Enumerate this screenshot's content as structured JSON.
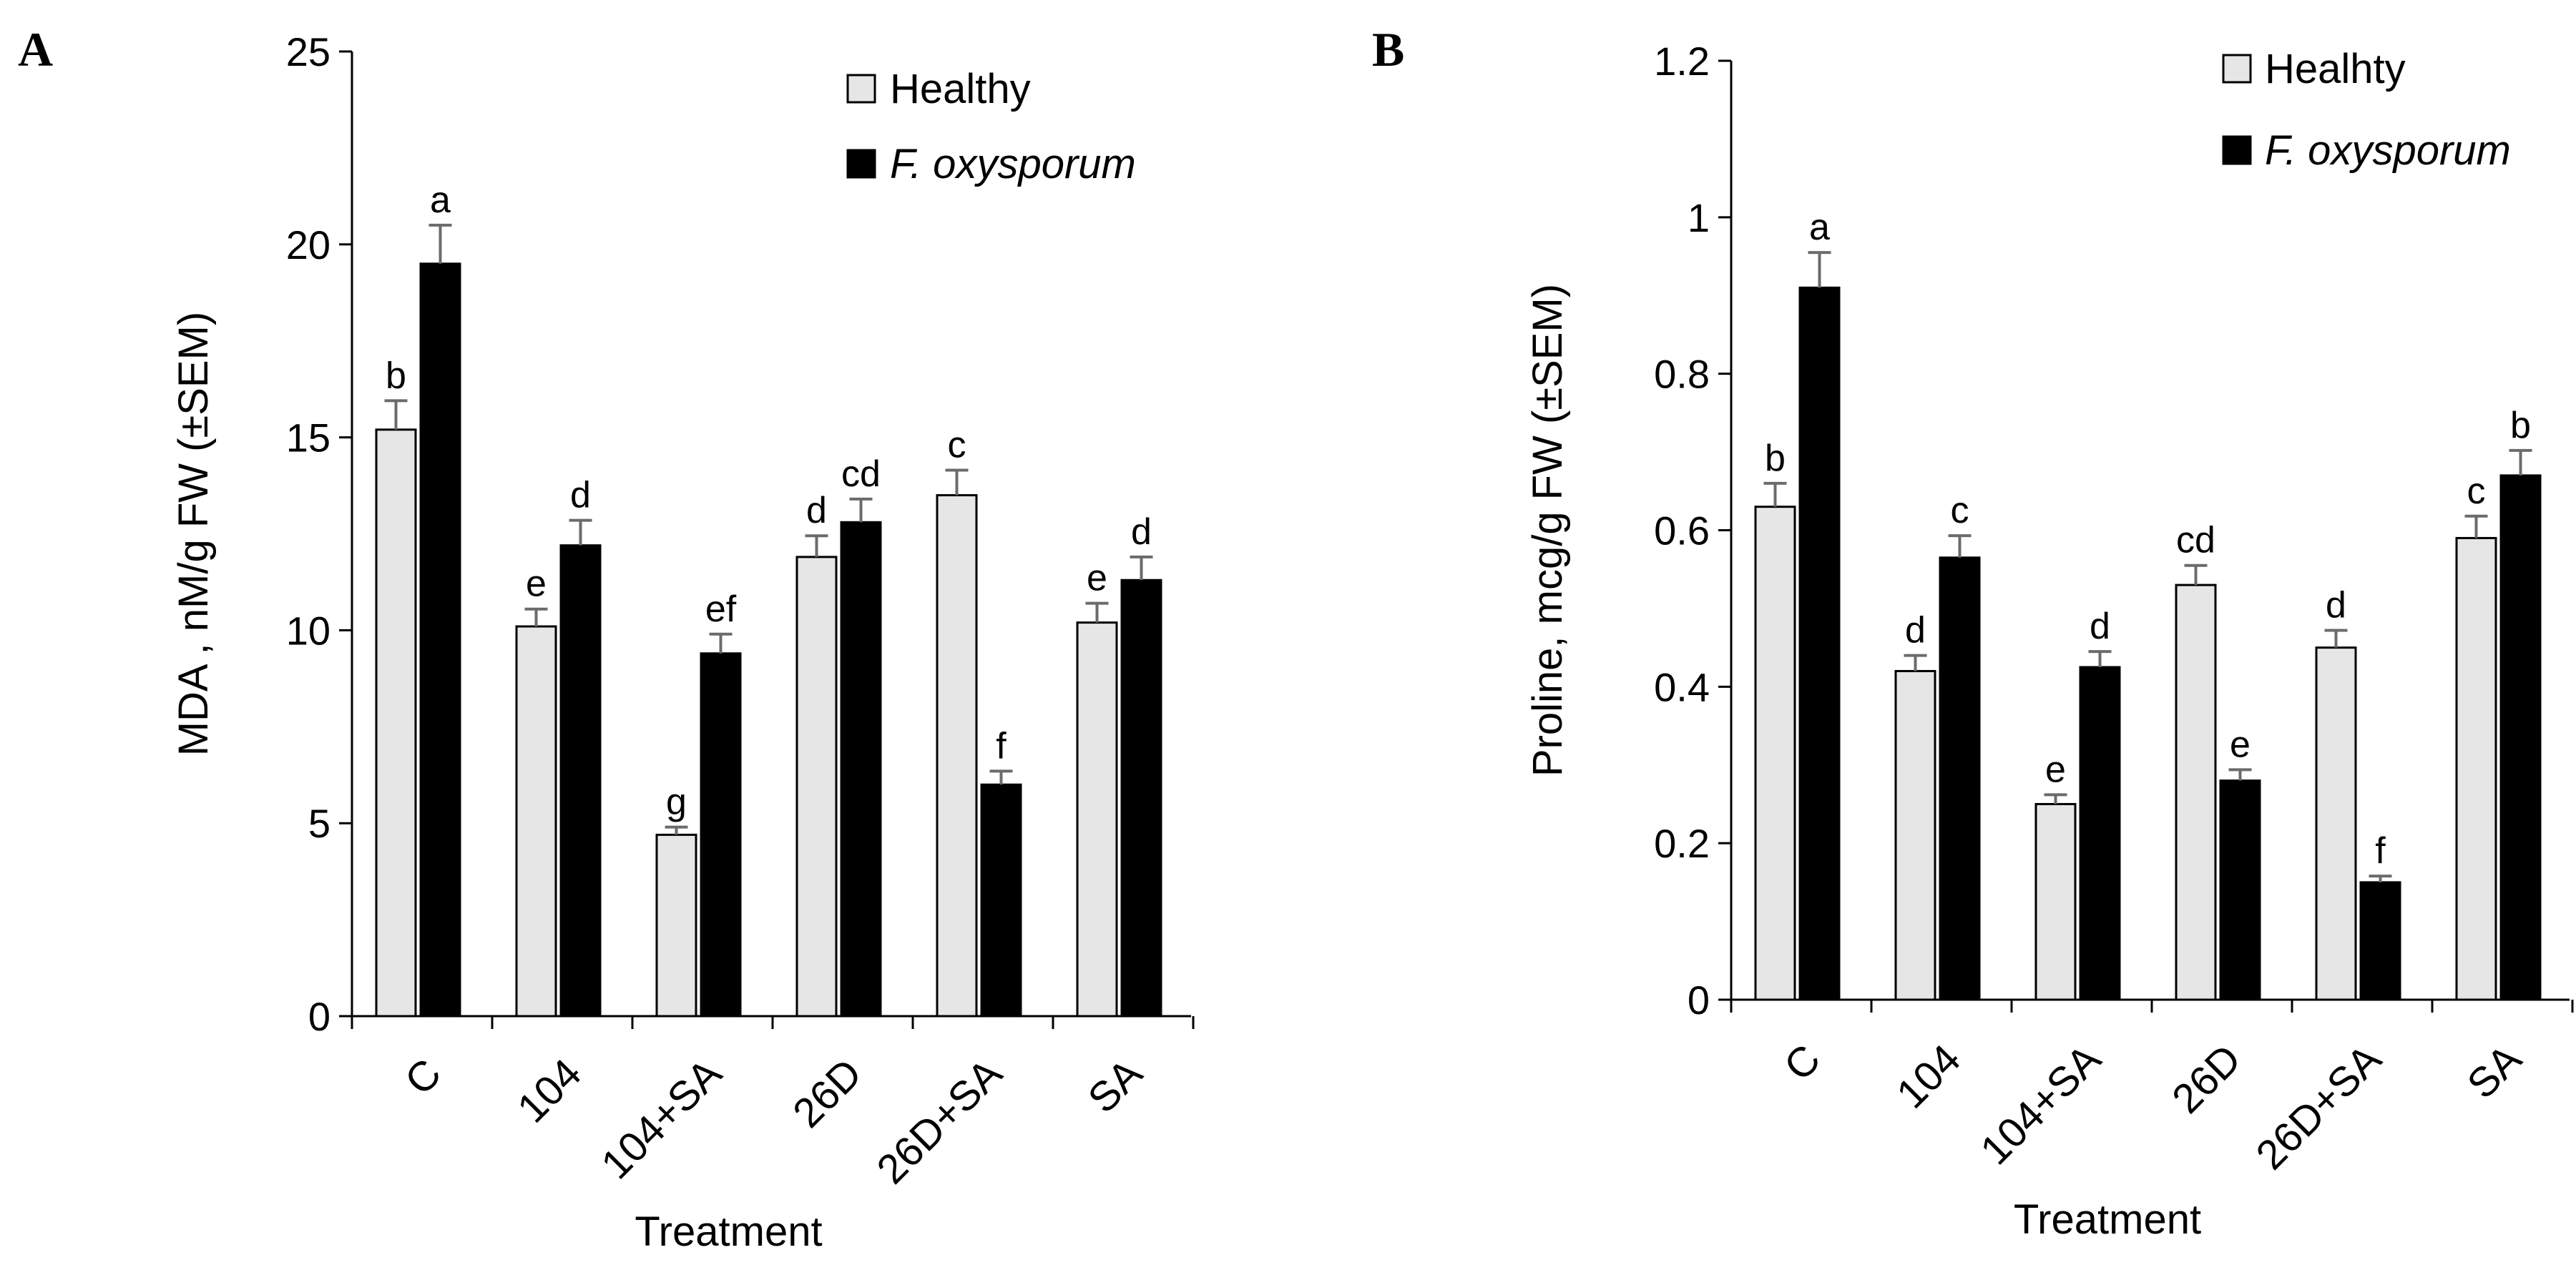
{
  "colors": {
    "healthy": "#e6e6e6",
    "infected": "#000000",
    "outline": "#000000",
    "error_bar": "#6b6b6b",
    "axis": "#000000"
  },
  "chart_data": [
    {
      "type": "bar",
      "panel_label": "A",
      "title": "",
      "xlabel": "Treatment",
      "ylabel": "MDA , nM/g FW (±SEM)",
      "ylim": [
        0,
        25
      ],
      "yticks": [
        0,
        5,
        10,
        15,
        20,
        25
      ],
      "ytick_labels": [
        "0",
        "5",
        "10",
        "15",
        "20",
        "25"
      ],
      "grid": false,
      "legend_position": "top-right",
      "categories": [
        "C",
        "104",
        "104+SA",
        "26D",
        "26D+SA",
        "SA"
      ],
      "series": [
        {
          "name": "Healthy",
          "italic": false,
          "color_key": "healthy",
          "values": [
            15.2,
            10.1,
            4.7,
            11.9,
            13.5,
            10.2
          ],
          "errors": [
            0.75,
            0.45,
            0.2,
            0.55,
            0.65,
            0.5
          ],
          "letters": [
            "b",
            "e",
            "g",
            "d",
            "c",
            "e"
          ]
        },
        {
          "name": "F. oxysporum",
          "italic": true,
          "color_key": "infected",
          "values": [
            19.5,
            12.2,
            9.4,
            12.8,
            6.0,
            11.3
          ],
          "errors": [
            1.0,
            0.65,
            0.5,
            0.6,
            0.35,
            0.6
          ],
          "letters": [
            "a",
            "d",
            "ef",
            "cd",
            "f",
            "d"
          ]
        }
      ]
    },
    {
      "type": "bar",
      "panel_label": "B",
      "title": "",
      "xlabel": "Treatment",
      "ylabel": "Proline, mcg/g FW (±SEM)",
      "ylim": [
        0,
        1.2
      ],
      "yticks": [
        0,
        0.2,
        0.4,
        0.6,
        0.8,
        1,
        1.2
      ],
      "ytick_labels": [
        "0",
        "0.2",
        "0.4",
        "0.6",
        "0.8",
        "1",
        "1.2"
      ],
      "grid": false,
      "legend_position": "top-right",
      "categories": [
        "C",
        "104",
        "104+SA",
        "26D",
        "26D+SA",
        "SA"
      ],
      "series": [
        {
          "name": "Healhty",
          "italic": false,
          "color_key": "healthy",
          "values": [
            0.63,
            0.42,
            0.25,
            0.53,
            0.45,
            0.59
          ],
          "errors": [
            0.03,
            0.02,
            0.012,
            0.025,
            0.022,
            0.028
          ],
          "letters": [
            "b",
            "d",
            "e",
            "cd",
            "d",
            "c"
          ]
        },
        {
          "name": "F. oxysporum",
          "italic": true,
          "color_key": "infected",
          "values": [
            0.91,
            0.565,
            0.425,
            0.28,
            0.15,
            0.67
          ],
          "errors": [
            0.045,
            0.028,
            0.02,
            0.014,
            0.008,
            0.032
          ],
          "letters": [
            "a",
            "c",
            "d",
            "e",
            "f",
            "b"
          ]
        }
      ]
    }
  ]
}
